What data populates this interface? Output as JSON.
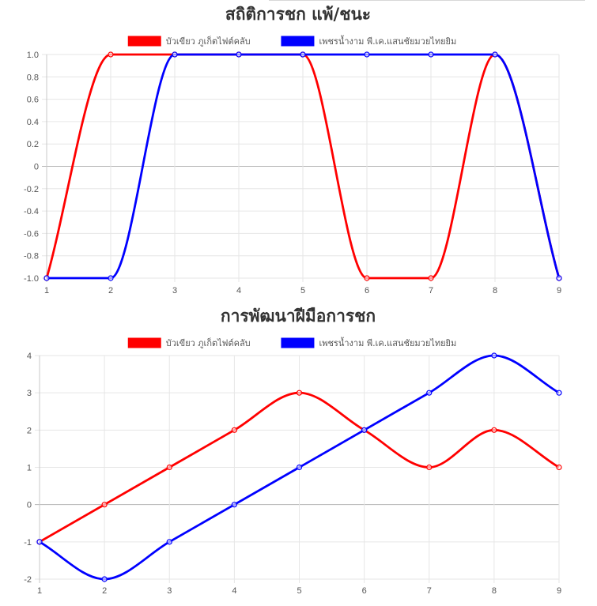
{
  "chart_data": [
    {
      "type": "line",
      "title": "สถิติการชก แพ้/ชนะ",
      "xlabel": "",
      "ylabel": "",
      "categories": [
        "1",
        "2",
        "3",
        "4",
        "5",
        "6",
        "7",
        "8",
        "9"
      ],
      "yticks": [
        "1.0",
        "0.8",
        "0.6",
        "0.4",
        "0.2",
        "0",
        "-0.2",
        "-0.4",
        "-0.6",
        "-0.8",
        "-1.0"
      ],
      "ylim": [
        -1,
        1
      ],
      "grid": true,
      "legend_position": "top",
      "series": [
        {
          "name": "บัวเขียว ภูเก็ตไฟต์คลับ",
          "color": "#ff0000",
          "values": [
            -1,
            1,
            1,
            1,
            1,
            -1,
            -1,
            1,
            -1
          ]
        },
        {
          "name": "เพชรน้ำงาม พี.เค.แสนชัยมวยไทยยิม",
          "color": "#0000ff",
          "values": [
            -1,
            -1,
            1,
            1,
            1,
            1,
            1,
            1,
            -1
          ]
        }
      ]
    },
    {
      "type": "line",
      "title": "การพัฒนาฝีมือการชก",
      "xlabel": "",
      "ylabel": "",
      "categories": [
        "1",
        "2",
        "3",
        "4",
        "5",
        "6",
        "7",
        "8",
        "9"
      ],
      "yticks": [
        "4",
        "3",
        "2",
        "1",
        "0",
        "-1",
        "-2"
      ],
      "ylim": [
        -2,
        4
      ],
      "grid": true,
      "legend_position": "top",
      "series": [
        {
          "name": "บัวเขียว ภูเก็ตไฟต์คลับ",
          "color": "#ff0000",
          "values": [
            -1,
            0,
            1,
            2,
            3,
            2,
            1,
            2,
            1
          ]
        },
        {
          "name": "เพชรน้ำงาม พี.เค.แสนชัยมวยไทยยิม",
          "color": "#0000ff",
          "values": [
            -1,
            -2,
            -1,
            0,
            1,
            2,
            3,
            4,
            3
          ]
        }
      ]
    }
  ]
}
